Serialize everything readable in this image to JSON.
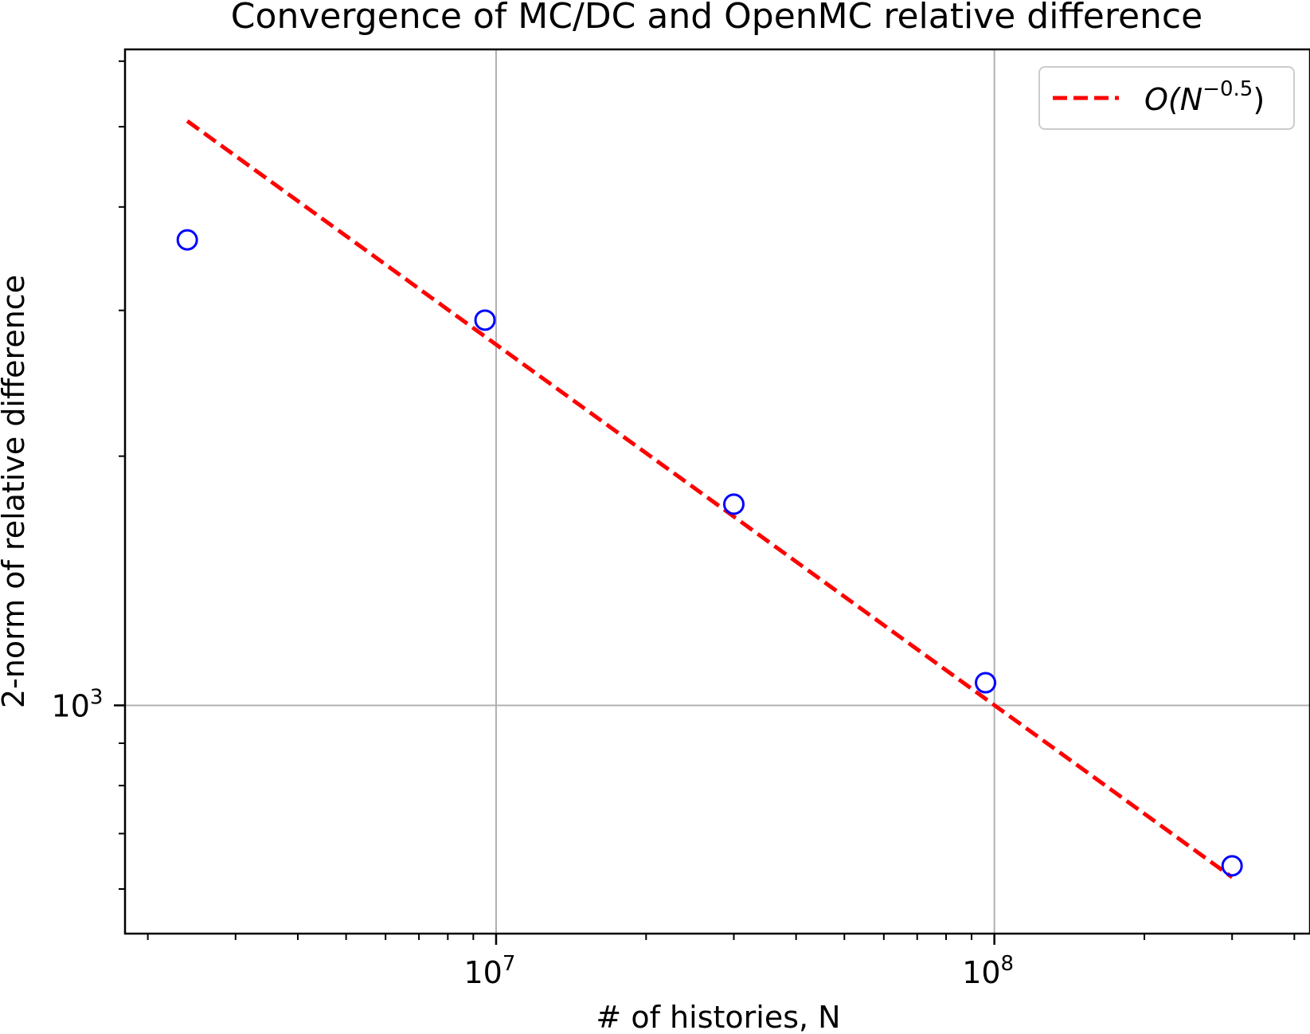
{
  "chart_data": {
    "type": "scatter",
    "title": "Convergence of MC/DC and OpenMC relative difference",
    "xlabel": "# of histories, N",
    "ylabel": "2-norm of relative difference",
    "xscale": "log",
    "yscale": "log",
    "xlim": [
      1800000.0,
      430000000.0
    ],
    "ylim": [
      530,
      6200
    ],
    "grid": true,
    "legend_position": "upper right",
    "x_ticks": [
      {
        "value": 10000000.0,
        "base": "10",
        "exp": "7"
      },
      {
        "value": 100000000.0,
        "base": "10",
        "exp": "8"
      }
    ],
    "y_ticks": [
      {
        "value": 1000,
        "base": "10",
        "exp": "3"
      }
    ],
    "series": [
      {
        "kind": "points",
        "marker": "open-circle",
        "color": "#0000ff",
        "x": [
          2400000.0,
          9500000.0,
          30000000.0,
          96000000.0,
          300000000.0
        ],
        "y": [
          3650,
          2920,
          1750,
          1065,
          640
        ]
      },
      {
        "name": "O(N^{-0.5})",
        "kind": "line",
        "style": "dashed",
        "color": "#ff0000",
        "x": [
          2400000.0,
          300000000.0
        ],
        "y": [
          5080,
          620
        ]
      }
    ],
    "legend": [
      {
        "series": 1,
        "main": "O(N",
        "sup": "−0.5",
        "close": ")"
      }
    ]
  }
}
